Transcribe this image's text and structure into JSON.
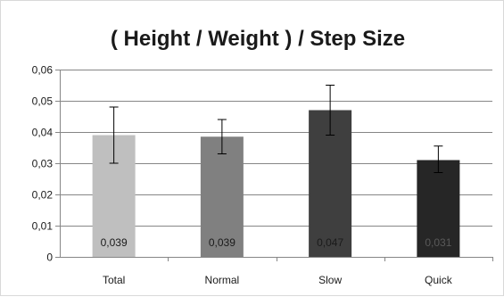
{
  "chart_data": {
    "type": "bar",
    "title": "( Height / Weight ) / Step Size",
    "xlabel": "",
    "ylabel": "",
    "categories": [
      "Total",
      "Normal",
      "Slow",
      "Quick"
    ],
    "values": [
      0.039,
      0.0385,
      0.047,
      0.031
    ],
    "data_labels": [
      "0,039",
      "0,039",
      "0,047",
      "0,031"
    ],
    "error_low": [
      0.03,
      0.033,
      0.039,
      0.027
    ],
    "error_high": [
      0.048,
      0.044,
      0.055,
      0.0355
    ],
    "bar_colors": [
      "#bfbfbf",
      "#808080",
      "#3f3f3f",
      "#262626"
    ],
    "data_label_colors": [
      "#1a1a1a",
      "#1a1a1a",
      "#1a1a1a",
      "#595959"
    ],
    "ylim": [
      0,
      0.06
    ],
    "y_ticks": [
      0,
      0.01,
      0.02,
      0.03,
      0.04,
      0.05,
      0.06
    ],
    "y_tick_labels": [
      "0",
      "0,01",
      "0,02",
      "0,03",
      "0,04",
      "0,05",
      "0,06"
    ],
    "grid": true,
    "legend": "none"
  }
}
